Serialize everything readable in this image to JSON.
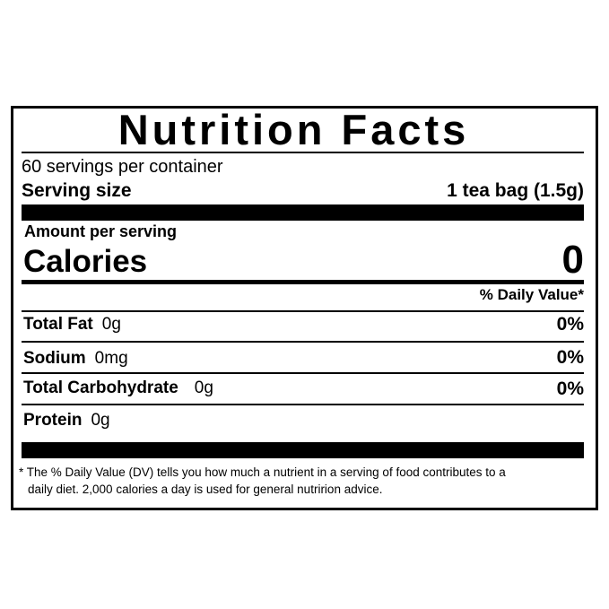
{
  "title": "Nutrition Facts",
  "servings_per_container": "60 servings per container",
  "serving_size": {
    "label": "Serving size",
    "value": "1 tea bag (1.5g)"
  },
  "amount_per_serving": "Amount per serving",
  "calories": {
    "label": "Calories",
    "value": "0"
  },
  "daily_value_header": "% Daily Value*",
  "nutrients": [
    {
      "label": "Total Fat",
      "amount": "0g",
      "dv": "0%"
    },
    {
      "label": "Sodium",
      "amount": "0mg",
      "dv": "0%"
    },
    {
      "label": "Total Carbohydrate",
      "amount": "0g",
      "dv": "0%"
    },
    {
      "label": "Protein",
      "amount": "0g",
      "dv": ""
    }
  ],
  "footnote": {
    "line1": "* The % Daily Value (DV) tells you how much a nutrient in a serving of food contributes to a",
    "line2": "daily diet. 2,000 calories a day is used for general nutririon advice."
  }
}
